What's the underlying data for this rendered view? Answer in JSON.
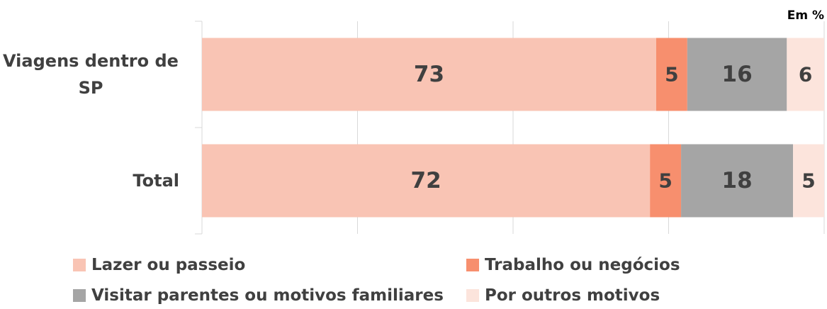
{
  "chart_data": {
    "type": "stacked_barh",
    "subtitle": "Em %",
    "categories": [
      "Viagens dentro de SP",
      "Total"
    ],
    "series": [
      {
        "name": "Lazer ou passeio",
        "color": "#f9c4b4",
        "values": [
          73,
          72
        ]
      },
      {
        "name": "Trabalho ou negócios",
        "color": "#f78f6e",
        "values": [
          5,
          5
        ]
      },
      {
        "name": "Visitar parentes ou motivos familiares",
        "color": "#a5a5a5",
        "values": [
          16,
          18
        ]
      },
      {
        "name": "Por outros motivos",
        "color": "#fce4dc",
        "values": [
          6,
          5
        ]
      }
    ],
    "xlim": [
      0,
      100
    ],
    "xticks": [
      0,
      25,
      50,
      75,
      100
    ],
    "grid": true
  }
}
